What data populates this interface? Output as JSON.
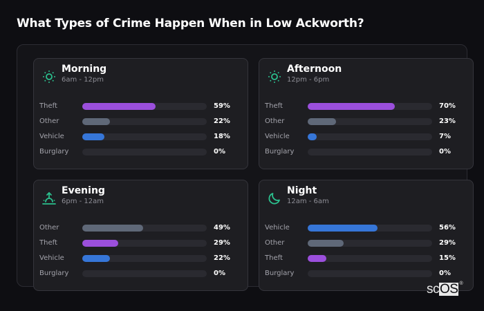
{
  "title": "What Types of Crime Happen When in Low Ackworth?",
  "colors": {
    "theft": "#9b4fdc",
    "other": "#5f6878",
    "vehicle": "#3676d8",
    "burglary": "#2a2a30",
    "accent_icon": "#2bc08e",
    "track": "#2a2a30"
  },
  "cards": [
    {
      "name": "Morning",
      "range": "6am - 12pm",
      "icon": "sun-icon",
      "rows": [
        {
          "label": "Theft",
          "value": "59%",
          "pct": 59,
          "type": "theft"
        },
        {
          "label": "Other",
          "value": "22%",
          "pct": 22,
          "type": "other"
        },
        {
          "label": "Vehicle",
          "value": "18%",
          "pct": 18,
          "type": "vehicle"
        },
        {
          "label": "Burglary",
          "value": "0%",
          "pct": 0,
          "type": "burglary"
        }
      ]
    },
    {
      "name": "Afternoon",
      "range": "12pm - 6pm",
      "icon": "sun-icon",
      "rows": [
        {
          "label": "Theft",
          "value": "70%",
          "pct": 70,
          "type": "theft"
        },
        {
          "label": "Other",
          "value": "23%",
          "pct": 23,
          "type": "other"
        },
        {
          "label": "Vehicle",
          "value": "7%",
          "pct": 7,
          "type": "vehicle"
        },
        {
          "label": "Burglary",
          "value": "0%",
          "pct": 0,
          "type": "burglary"
        }
      ]
    },
    {
      "name": "Evening",
      "range": "6pm - 12am",
      "icon": "sunset-icon",
      "rows": [
        {
          "label": "Other",
          "value": "49%",
          "pct": 49,
          "type": "other"
        },
        {
          "label": "Theft",
          "value": "29%",
          "pct": 29,
          "type": "theft"
        },
        {
          "label": "Vehicle",
          "value": "22%",
          "pct": 22,
          "type": "vehicle"
        },
        {
          "label": "Burglary",
          "value": "0%",
          "pct": 0,
          "type": "burglary"
        }
      ]
    },
    {
      "name": "Night",
      "range": "12am - 6am",
      "icon": "moon-icon",
      "rows": [
        {
          "label": "Vehicle",
          "value": "56%",
          "pct": 56,
          "type": "vehicle"
        },
        {
          "label": "Other",
          "value": "29%",
          "pct": 29,
          "type": "other"
        },
        {
          "label": "Theft",
          "value": "15%",
          "pct": 15,
          "type": "theft"
        },
        {
          "label": "Burglary",
          "value": "0%",
          "pct": 0,
          "type": "burglary"
        }
      ]
    }
  ],
  "logo": {
    "sc": "sc",
    "os": "OS",
    "reg": "®"
  },
  "chart_data": [
    {
      "type": "bar",
      "orientation": "horizontal",
      "title": "Morning (6am - 12pm)",
      "categories": [
        "Theft",
        "Other",
        "Vehicle",
        "Burglary"
      ],
      "values": [
        59,
        22,
        18,
        0
      ],
      "unit": "%",
      "xlim": [
        0,
        100
      ]
    },
    {
      "type": "bar",
      "orientation": "horizontal",
      "title": "Afternoon (12pm - 6pm)",
      "categories": [
        "Theft",
        "Other",
        "Vehicle",
        "Burglary"
      ],
      "values": [
        70,
        23,
        7,
        0
      ],
      "unit": "%",
      "xlim": [
        0,
        100
      ]
    },
    {
      "type": "bar",
      "orientation": "horizontal",
      "title": "Evening (6pm - 12am)",
      "categories": [
        "Other",
        "Theft",
        "Vehicle",
        "Burglary"
      ],
      "values": [
        49,
        29,
        22,
        0
      ],
      "unit": "%",
      "xlim": [
        0,
        100
      ]
    },
    {
      "type": "bar",
      "orientation": "horizontal",
      "title": "Night (12am - 6am)",
      "categories": [
        "Vehicle",
        "Other",
        "Theft",
        "Burglary"
      ],
      "values": [
        56,
        29,
        15,
        0
      ],
      "unit": "%",
      "xlim": [
        0,
        100
      ]
    }
  ]
}
